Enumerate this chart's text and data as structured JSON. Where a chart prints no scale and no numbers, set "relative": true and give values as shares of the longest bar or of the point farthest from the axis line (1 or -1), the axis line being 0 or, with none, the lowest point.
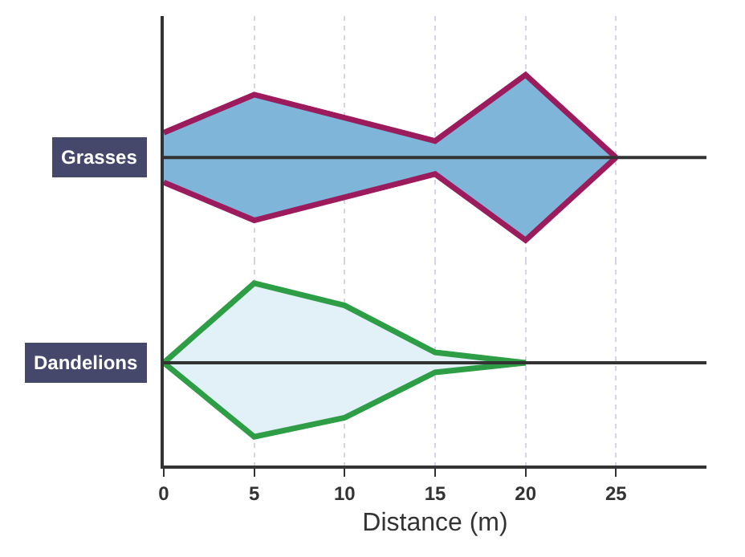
{
  "chart_data": [
    {
      "type": "area",
      "relative": true,
      "xlim": [
        0,
        30
      ],
      "xticks": [
        0,
        5,
        10,
        15,
        20,
        25
      ],
      "tick_labels": false,
      "grid": "x",
      "legend": false,
      "ref_lines": [
        {
          "axis": "y",
          "value": 0,
          "color": "#333333"
        }
      ],
      "series": [
        {
          "name": "Grasses",
          "color": "#7fb5d8",
          "x": [
            0,
            5,
            15,
            20,
            25
          ],
          "values": [
            0.3,
            0.76,
            0.2,
            1,
            0
          ]
        },
        {
          "color": "#7fb5d8",
          "x": [
            0,
            5,
            15,
            20,
            25
          ],
          "values": [
            -0.3,
            -0.76,
            -0.2,
            -1,
            0
          ]
        }
      ]
    },
    {
      "type": "area",
      "relative": true,
      "xlabel": "Distance (m)",
      "xlim": [
        0,
        30
      ],
      "xticks": [
        0,
        5,
        10,
        15,
        20,
        25
      ],
      "tick_labels": "x",
      "grid": "x",
      "legend": false,
      "ref_lines": [
        {
          "axis": "y",
          "value": 0,
          "color": "#333333"
        }
      ],
      "series": [
        {
          "name": "Dandelions",
          "color": "#e2f1f8",
          "x": [
            0,
            5,
            10,
            15,
            20
          ],
          "values": [
            0,
            1,
            0.72,
            0.13,
            0
          ]
        },
        {
          "color": "#e2f1f8",
          "x": [
            0,
            5,
            10,
            15,
            20
          ],
          "values": [
            0,
            -0.93,
            -0.69,
            -0.12,
            0
          ]
        }
      ]
    }
  ]
}
